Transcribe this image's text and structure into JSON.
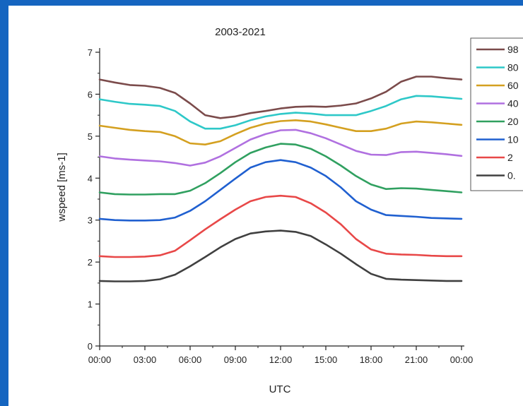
{
  "chart_data": {
    "type": "line",
    "title": "2003-2021",
    "xlabel": "UTC",
    "ylabel": "wspeed [ms-1]",
    "x_ticks": [
      "00:00",
      "03:00",
      "06:00",
      "09:00",
      "12:00",
      "15:00",
      "18:00",
      "21:00",
      "00:00"
    ],
    "x": [
      0,
      1,
      2,
      3,
      4,
      5,
      6,
      7,
      8,
      9,
      10,
      11,
      12,
      13,
      14,
      15,
      16,
      17,
      18,
      19,
      20,
      21,
      22,
      23,
      24
    ],
    "xlim": [
      0,
      24
    ],
    "ylim": [
      0,
      7
    ],
    "y_ticks": [
      "0",
      "1",
      "2",
      "3",
      "4",
      "5",
      "6",
      "7"
    ],
    "grid": false,
    "legend_position": "right",
    "series": [
      {
        "name": "98",
        "color": "#7b4b4b",
        "values": [
          6.35,
          6.28,
          6.22,
          6.2,
          6.15,
          6.03,
          5.78,
          5.5,
          5.43,
          5.47,
          5.55,
          5.6,
          5.66,
          5.7,
          5.71,
          5.7,
          5.73,
          5.78,
          5.9,
          6.06,
          6.3,
          6.42,
          6.42,
          6.38,
          6.35
        ]
      },
      {
        "name": "80",
        "color": "#2ec8c8",
        "values": [
          5.88,
          5.82,
          5.77,
          5.75,
          5.72,
          5.6,
          5.35,
          5.18,
          5.18,
          5.26,
          5.38,
          5.47,
          5.53,
          5.56,
          5.54,
          5.5,
          5.5,
          5.5,
          5.6,
          5.72,
          5.88,
          5.96,
          5.95,
          5.92,
          5.89
        ]
      },
      {
        "name": "60",
        "color": "#d4a020",
        "values": [
          5.25,
          5.2,
          5.15,
          5.12,
          5.1,
          5.0,
          4.83,
          4.8,
          4.88,
          5.05,
          5.2,
          5.3,
          5.36,
          5.38,
          5.35,
          5.28,
          5.2,
          5.12,
          5.12,
          5.18,
          5.3,
          5.35,
          5.33,
          5.3,
          5.27
        ]
      },
      {
        "name": "40",
        "color": "#b070e0",
        "values": [
          4.52,
          4.47,
          4.44,
          4.42,
          4.4,
          4.36,
          4.3,
          4.37,
          4.52,
          4.72,
          4.92,
          5.05,
          5.14,
          5.15,
          5.07,
          4.95,
          4.8,
          4.65,
          4.56,
          4.55,
          4.62,
          4.63,
          4.6,
          4.57,
          4.53
        ]
      },
      {
        "name": "20",
        "color": "#30a060",
        "values": [
          3.66,
          3.62,
          3.61,
          3.61,
          3.62,
          3.62,
          3.7,
          3.88,
          4.12,
          4.38,
          4.6,
          4.73,
          4.82,
          4.8,
          4.7,
          4.52,
          4.3,
          4.05,
          3.85,
          3.74,
          3.76,
          3.75,
          3.72,
          3.69,
          3.66
        ]
      },
      {
        "name": "10",
        "color": "#2060d0",
        "values": [
          3.03,
          3.0,
          2.99,
          2.99,
          3.0,
          3.06,
          3.22,
          3.45,
          3.72,
          3.99,
          4.25,
          4.38,
          4.43,
          4.38,
          4.25,
          4.05,
          3.78,
          3.45,
          3.25,
          3.12,
          3.1,
          3.08,
          3.05,
          3.04,
          3.03
        ]
      },
      {
        "name": "2",
        "color": "#e84848",
        "values": [
          2.14,
          2.12,
          2.12,
          2.13,
          2.16,
          2.27,
          2.52,
          2.78,
          3.02,
          3.25,
          3.45,
          3.55,
          3.58,
          3.55,
          3.4,
          3.18,
          2.9,
          2.55,
          2.3,
          2.2,
          2.18,
          2.17,
          2.15,
          2.14,
          2.14
        ]
      },
      {
        "name": "0.",
        "color": "#404040",
        "values": [
          1.55,
          1.54,
          1.54,
          1.55,
          1.59,
          1.7,
          1.9,
          2.12,
          2.35,
          2.55,
          2.68,
          2.73,
          2.75,
          2.72,
          2.62,
          2.42,
          2.2,
          1.95,
          1.72,
          1.6,
          1.58,
          1.57,
          1.56,
          1.55,
          1.55
        ]
      }
    ]
  }
}
